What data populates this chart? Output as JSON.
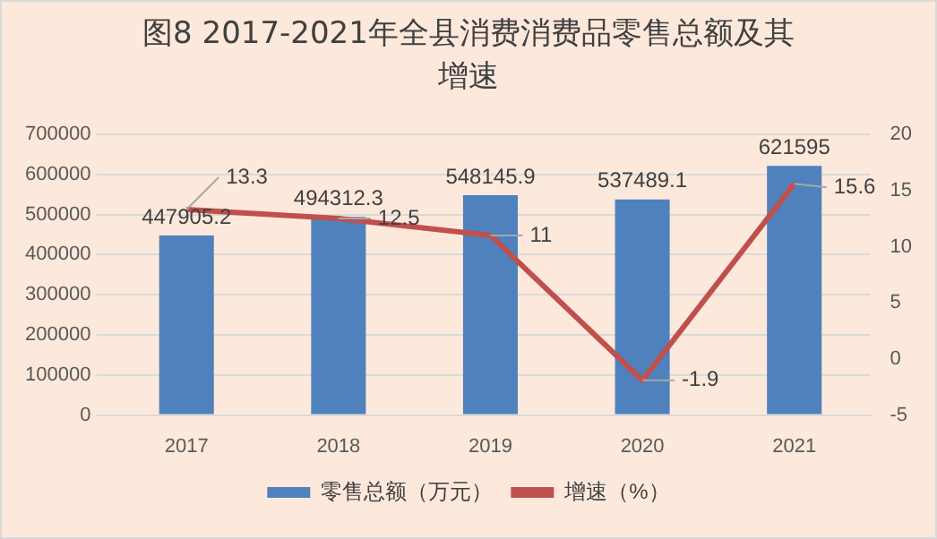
{
  "chart_data": {
    "type": "bar",
    "title": "图8 2017-2021年全县消费消费品零售总额及其增速",
    "categories": [
      "2017",
      "2018",
      "2019",
      "2020",
      "2021"
    ],
    "series": [
      {
        "name": "零售总额（万元）",
        "color": "#4f81bd",
        "values": [
          447905.2,
          494312.3,
          548145.9,
          537489.1,
          621595
        ]
      },
      {
        "name": "增速（%）",
        "type": "line",
        "axis": "y2",
        "color": "#c0504d",
        "values": [
          13.3,
          12.5,
          11,
          -1.9,
          15.6
        ]
      }
    ],
    "ylim": [
      0,
      700000
    ],
    "yticks": [
      0,
      100000,
      200000,
      300000,
      400000,
      500000,
      600000,
      700000
    ],
    "y2lim": [
      -5,
      20
    ],
    "y2ticks": [
      -5,
      0,
      5,
      10,
      15,
      20
    ],
    "grid": "y",
    "legend": "bottom",
    "data_labels": true,
    "marker": "none",
    "line_style": "solid"
  }
}
